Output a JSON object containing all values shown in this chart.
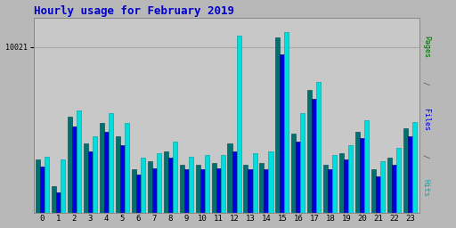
{
  "title": "Hourly usage for February 2019",
  "title_color": "#0000cc",
  "title_fontsize": 9,
  "hours": [
    0,
    1,
    2,
    3,
    4,
    5,
    6,
    7,
    8,
    9,
    10,
    11,
    12,
    13,
    14,
    15,
    16,
    17,
    18,
    19,
    20,
    21,
    22,
    23
  ],
  "pages": [
    3200,
    1600,
    5800,
    4200,
    5400,
    4600,
    2600,
    3100,
    3700,
    2900,
    2900,
    3000,
    4200,
    2900,
    3000,
    10600,
    4800,
    7400,
    2900,
    3600,
    4900,
    2600,
    3300,
    5100
  ],
  "files": [
    2800,
    1200,
    5200,
    3700,
    4900,
    4100,
    2300,
    2700,
    3300,
    2600,
    2600,
    2700,
    3700,
    2600,
    2600,
    9600,
    4300,
    6900,
    2600,
    3200,
    4500,
    2200,
    2900,
    4600
  ],
  "hits": [
    3400,
    3200,
    6200,
    4600,
    6000,
    5400,
    3300,
    3600,
    4300,
    3400,
    3500,
    3500,
    10700,
    3600,
    3700,
    10900,
    6000,
    7900,
    3500,
    4100,
    5600,
    3100,
    3900,
    5500
  ],
  "ymax": 11800,
  "ytick_value": 10021,
  "ytick_label": "10021",
  "bar_width": 0.28,
  "pages_color": "#007070",
  "files_color": "#0000dd",
  "hits_color": "#00dddd",
  "outer_bg": "#b8b8b8",
  "plot_bg": "#c8c8c8",
  "grid_color": "#aaaaaa"
}
